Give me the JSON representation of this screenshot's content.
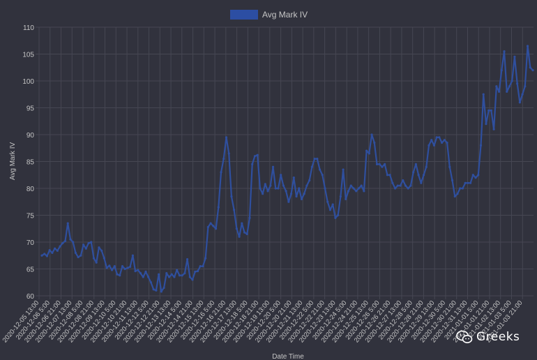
{
  "chart_data": {
    "type": "line",
    "xlabel": "Date Time",
    "ylabel": "Avg Mark IV",
    "ylim": [
      60,
      110
    ],
    "y_ticks": [
      60,
      65,
      70,
      75,
      80,
      85,
      90,
      95,
      100,
      105,
      110
    ],
    "legend": {
      "position": "top-center"
    },
    "grid": true,
    "colors": {
      "background": "#31323d",
      "grid": "#464753",
      "text": "#c6c6c6",
      "line": "#2f4f9e",
      "legend_swatch": "#2c4ea3"
    },
    "x_tick_labels": [
      "2020-12-05 13:00",
      "2020-12-06 5:00",
      "2020-12-06 21:00",
      "2020-12-07 13:00",
      "2020-12-08 5:00",
      "2020-12-08 21:00",
      "2020-12-09 13:00",
      "2020-12-10 5:00",
      "2020-12-10 21:00",
      "2020-12-11 13:00",
      "2020-12-12 5:00",
      "2020-12-12 21:00",
      "2020-12-13 13:00",
      "2020-12-14 5:00",
      "2020-12-14 21:00",
      "2020-12-15 13:00",
      "2020-12-16 5:00",
      "2020-12-16 21:00",
      "2020-12-17 13:00",
      "2020-12-18 5:00",
      "2020-12-18 21:00",
      "2020-12-19 13:00",
      "2020-12-20 5:00",
      "2020-12-20 21:00",
      "2020-12-21 13:00",
      "2020-12-22 5:00",
      "2020-12-22 21:00",
      "2020-12-23 13:00",
      "2020-12-24 5:00",
      "2020-12-24 21:00",
      "2020-12-25 13:00",
      "2020-12-26 5:00",
      "2020-12-26 21:00",
      "2020-12-27 13:00",
      "2020-12-28 5:00",
      "2020-12-28 21:00",
      "2020-12-29 13:00",
      "2020-12-30 5:00",
      "2020-12-30 21:00",
      "2020-12-31 13:00",
      "2021-01-01 5:00",
      "2021-01-01 21:00",
      "2021-01-02 13:00",
      "2021-01-03 5:00",
      "2021-01-03 21:00"
    ],
    "series": [
      {
        "name": "Avg Mark IV",
        "values": [
          67.5,
          67.8,
          67.4,
          68.5,
          68.0,
          68.8,
          68.4,
          69.2,
          69.8,
          70.2,
          73.5,
          70.5,
          70.0,
          68.0,
          67.2,
          67.5,
          69.5,
          68.8,
          69.8,
          70.0,
          67.0,
          66.2,
          69.0,
          68.4,
          67.0,
          65.2,
          65.6,
          64.8,
          65.5,
          64.0,
          63.8,
          65.5,
          65.0,
          65.2,
          65.4,
          67.5,
          64.6,
          64.8,
          64.2,
          63.5,
          64.5,
          63.5,
          62.5,
          61.2,
          61.0,
          64.0,
          60.8,
          61.5,
          64.2,
          63.5,
          64.0,
          63.5,
          64.8,
          63.8,
          63.8,
          64.2,
          66.8,
          63.5,
          63.0,
          64.5,
          64.6,
          65.5,
          65.5,
          67.0,
          72.8,
          73.5,
          73.0,
          72.5,
          76.5,
          83.0,
          85.5,
          89.5,
          86.5,
          78.5,
          76.0,
          72.5,
          71.0,
          73.5,
          71.8,
          71.5,
          74.5,
          84.5,
          86.0,
          86.2,
          80.0,
          79.0,
          80.8,
          79.5,
          80.5,
          84.0,
          80.0,
          80.0,
          82.5,
          80.5,
          79.5,
          77.5,
          79.0,
          82.0,
          78.5,
          80.0,
          78.0,
          79.0,
          80.5,
          81.5,
          84.0,
          85.5,
          85.5,
          83.5,
          82.5,
          80.0,
          77.5,
          76.0,
          77.0,
          74.5,
          75.0,
          78.5,
          83.5,
          78.0,
          79.5,
          80.5,
          80.0,
          79.5,
          80.0,
          80.5,
          79.5,
          87.0,
          86.5,
          90.0,
          88.5,
          84.5,
          84.5,
          84.0,
          84.5,
          82.5,
          82.5,
          81.0,
          80.0,
          80.5,
          80.5,
          81.5,
          80.5,
          80.0,
          80.5,
          83.0,
          84.5,
          82.5,
          81.0,
          82.5,
          84.0,
          88.0,
          89.0,
          88.0,
          89.5,
          89.5,
          88.5,
          89.0,
          88.5,
          84.0,
          81.5,
          78.5,
          79.0,
          80.0,
          80.0,
          81.0,
          81.0,
          81.0,
          82.5,
          82.0,
          82.5,
          88.0,
          97.5,
          92.0,
          94.5,
          94.5,
          91.0,
          99.0,
          98.0,
          102.0,
          105.5,
          98.0,
          99.0,
          100.0,
          104.5,
          99.5,
          96.0,
          97.5,
          99.0,
          106.5,
          102.5,
          102.0
        ]
      }
    ]
  },
  "watermark": {
    "text": "Greeks",
    "icon": "wechat-icon"
  }
}
